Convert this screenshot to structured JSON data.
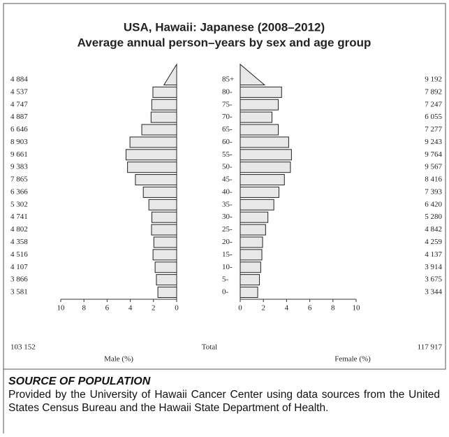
{
  "chart_data": {
    "type": "pyramid",
    "title": "USA, Hawaii: Japanese (2008–2012)",
    "subtitle": "Average annual person–years by sex and age group",
    "categories": [
      "0-",
      "5-",
      "10-",
      "15-",
      "20-",
      "25-",
      "30-",
      "35-",
      "40-",
      "45-",
      "50-",
      "55-",
      "60-",
      "65-",
      "70-",
      "75-",
      "80-",
      "85+"
    ],
    "series": [
      {
        "name": "Male (%)",
        "color": "#e8e8e8",
        "values": [
          1.62,
          1.75,
          1.86,
          2.04,
          1.97,
          2.17,
          2.14,
          2.4,
          2.88,
          3.56,
          4.24,
          4.37,
          4.03,
          3.01,
          2.21,
          2.15,
          2.05,
          1.1
        ],
        "counts": [
          "3 581",
          "3 866",
          "4 107",
          "4 516",
          "4 358",
          "4 802",
          "4 741",
          "5 302",
          "6 366",
          "7 865",
          "9 383",
          "9 661",
          "8 903",
          "6 646",
          "4 887",
          "4 747",
          "4 537",
          "4 884"
        ],
        "total": "103 152"
      },
      {
        "name": "Female (%)",
        "color": "#e8e8e8",
        "values": [
          1.51,
          1.66,
          1.77,
          1.87,
          1.93,
          2.19,
          2.39,
          2.9,
          3.34,
          3.81,
          4.33,
          4.42,
          4.18,
          3.29,
          2.74,
          3.28,
          3.57,
          2.1
        ],
        "counts": [
          "3 344",
          "3 675",
          "3 914",
          "4 137",
          "4 259",
          "4 842",
          "5 280",
          "6 420",
          "7 393",
          "8 416",
          "9 567",
          "9 764",
          "9 243",
          "7 277",
          "6 055",
          "7 247",
          "7 892",
          "9 192"
        ],
        "total": "117 917"
      }
    ],
    "total_label": "Total",
    "xlim": [
      0,
      10
    ],
    "xticks": [
      0,
      2,
      4,
      6,
      8,
      10
    ]
  },
  "source": {
    "heading": "SOURCE OF POPULATION",
    "text": "Provided by the University of Hawaii Cancer Center using data sources from the United States Census Bureau and the Hawaii State Department of Health."
  }
}
